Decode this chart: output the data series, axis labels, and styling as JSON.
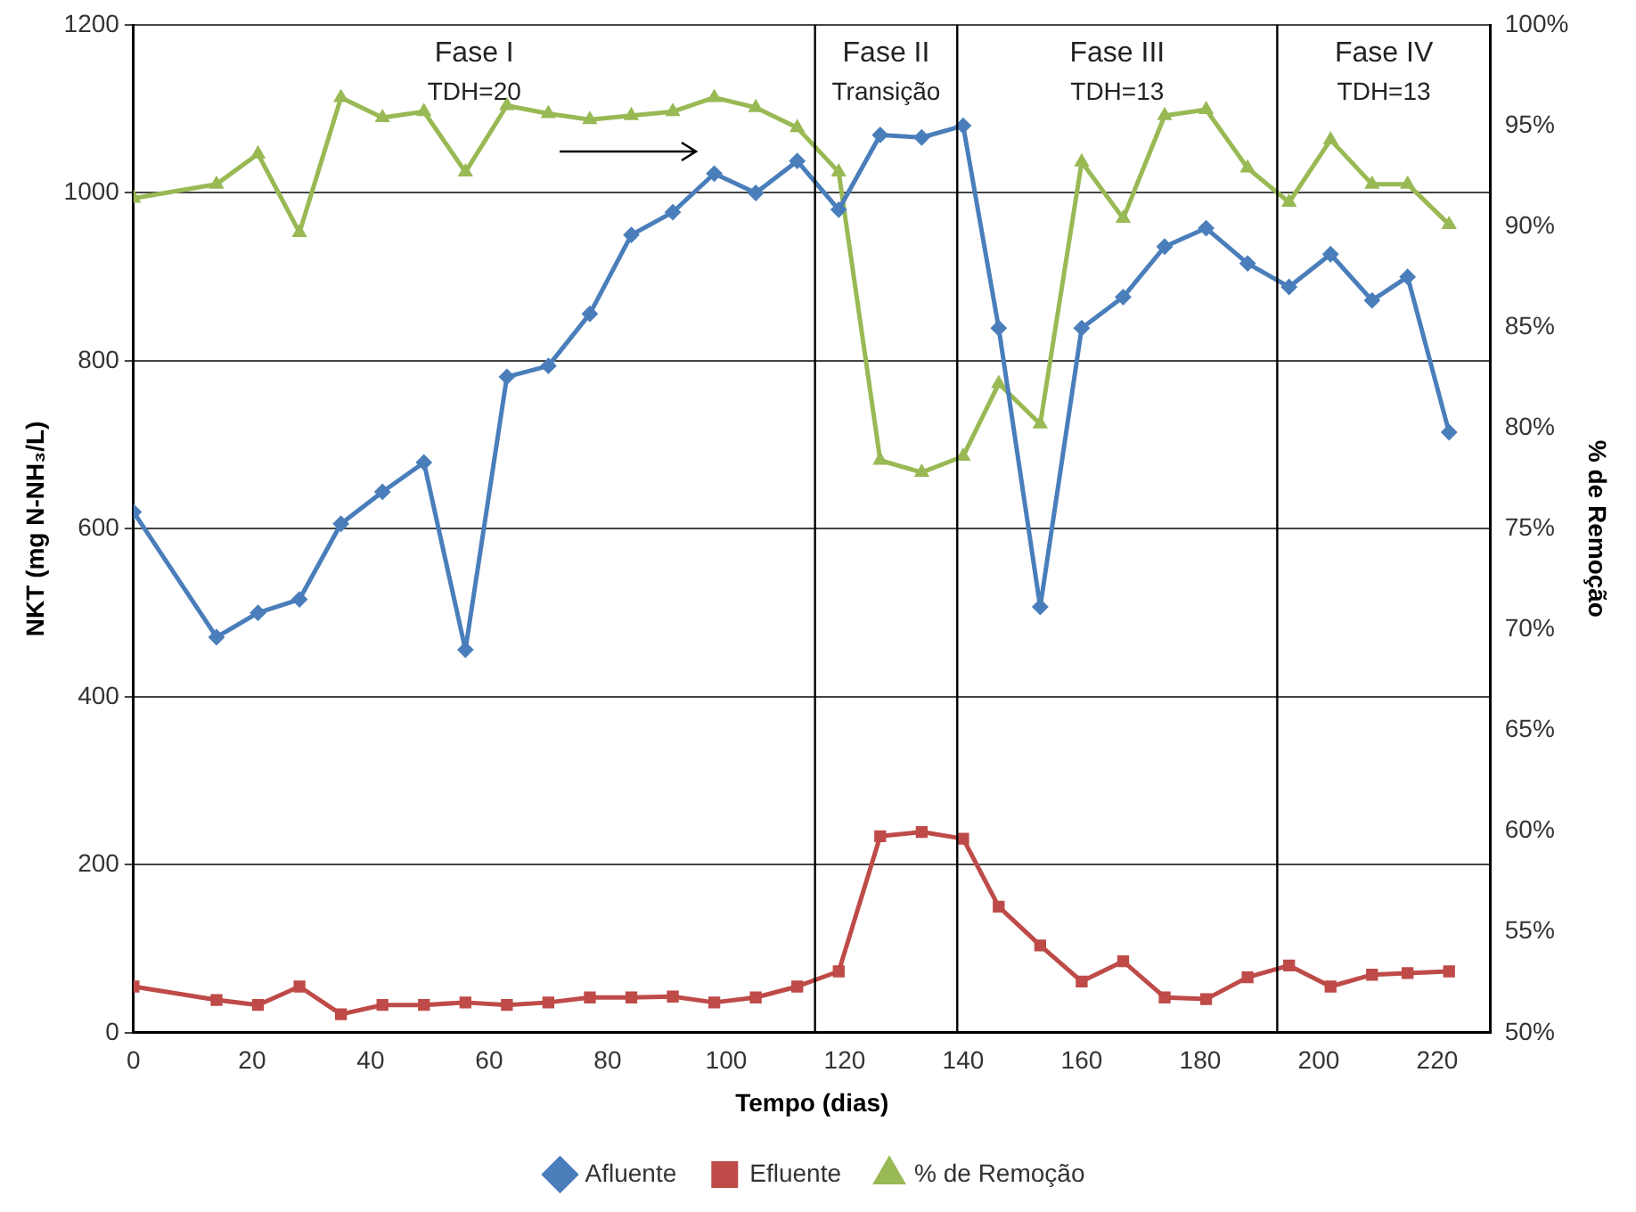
{
  "chart_data": {
    "type": "line",
    "xlabel": "Tempo (dias)",
    "ylabel": "NKT (mg N-NH₃/L)",
    "y2label": "% de Remoção",
    "xlim": [
      0,
      229
    ],
    "xticks": [
      0,
      20,
      40,
      60,
      80,
      100,
      120,
      140,
      160,
      180,
      200,
      220
    ],
    "ylim": [
      0,
      1200
    ],
    "yticks": [
      0,
      200,
      400,
      600,
      800,
      1000,
      1200
    ],
    "y2lim": [
      50,
      100
    ],
    "y2ticks": [
      {
        "value": 50,
        "label": "50%"
      },
      {
        "value": 55,
        "label": "55%"
      },
      {
        "value": 60,
        "label": "60%"
      },
      {
        "value": 65,
        "label": "65%"
      },
      {
        "value": 70,
        "label": "70%"
      },
      {
        "value": 75,
        "label": "75%"
      },
      {
        "value": 80,
        "label": "80%"
      },
      {
        "value": 85,
        "label": "85%"
      },
      {
        "value": 90,
        "label": "90%"
      },
      {
        "value": 95,
        "label": "95%"
      },
      {
        "value": 100,
        "label": "100%"
      }
    ],
    "x": [
      0,
      14,
      21,
      28,
      35,
      42,
      49,
      56,
      63,
      70,
      77,
      84,
      91,
      98,
      105,
      112,
      119,
      126,
      133,
      140,
      146,
      153,
      160,
      167,
      174,
      181,
      188,
      195,
      202,
      209,
      215,
      222
    ],
    "series": [
      {
        "name": "Afluente",
        "color": "#4a7ebb",
        "marker": "diamond",
        "values": [
          620,
          471,
          500,
          516,
          606,
          644,
          679,
          456,
          781,
          794,
          856,
          950,
          977,
          1023,
          1000,
          1038,
          980,
          1069,
          1066,
          1080,
          839,
          507,
          839,
          876,
          936,
          958,
          916,
          888,
          927,
          872,
          900,
          715
        ]
      },
      {
        "name": "Efluente",
        "color": "#be4b48",
        "marker": "square",
        "values": [
          55,
          39,
          33,
          55,
          22,
          33,
          33,
          36,
          33,
          36,
          42,
          42,
          43,
          36,
          42,
          55,
          73,
          234,
          239,
          231,
          150,
          104,
          61,
          85,
          42,
          40,
          66,
          80,
          55,
          69,
          71,
          73
        ]
      },
      {
        "name": "% de Remoção",
        "color": "#98b954",
        "marker": "triangle",
        "axis": "y2",
        "values": [
          91.4,
          92.1,
          93.6,
          89.7,
          96.4,
          95.4,
          95.7,
          92.7,
          96.0,
          95.6,
          95.3,
          95.5,
          95.7,
          96.4,
          95.9,
          94.9,
          92.7,
          78.4,
          77.8,
          78.6,
          82.2,
          80.2,
          93.2,
          90.4,
          95.5,
          95.8,
          92.9,
          91.2,
          94.3,
          92.1,
          92.1,
          90.1
        ]
      }
    ],
    "ref_lines": [
      {
        "axis": "x",
        "value": 115,
        "color": "#000000"
      },
      {
        "axis": "x",
        "value": 139,
        "color": "#000000"
      },
      {
        "axis": "x",
        "value": 193,
        "color": "#000000"
      }
    ],
    "annotations": [
      "Fase I\nTDH=20",
      "Fase II\nTransição",
      "Fase III\nTDH=13",
      "Fase IV\nTDH=13"
    ],
    "grid": "y",
    "legend": "bottom",
    "line_style": "solid"
  }
}
